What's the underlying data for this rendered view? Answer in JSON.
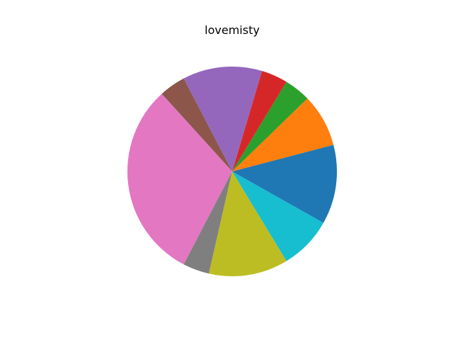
{
  "chart_data": {
    "type": "pie",
    "title": "lovemisty",
    "values": [
      4,
      8,
      4,
      4,
      12,
      4,
      30,
      4,
      12,
      8,
      8
    ],
    "colors": [
      "#1f77b4",
      "#ff7f0e",
      "#2ca02c",
      "#d62728",
      "#9467bd",
      "#8c564b",
      "#e377c2",
      "#7f7f7f",
      "#bcbd22",
      "#17becf",
      "#1f77b4"
    ],
    "start_angle_deg": 0,
    "direction": "counterclockwise",
    "labels_shown": false,
    "legend": "none"
  }
}
